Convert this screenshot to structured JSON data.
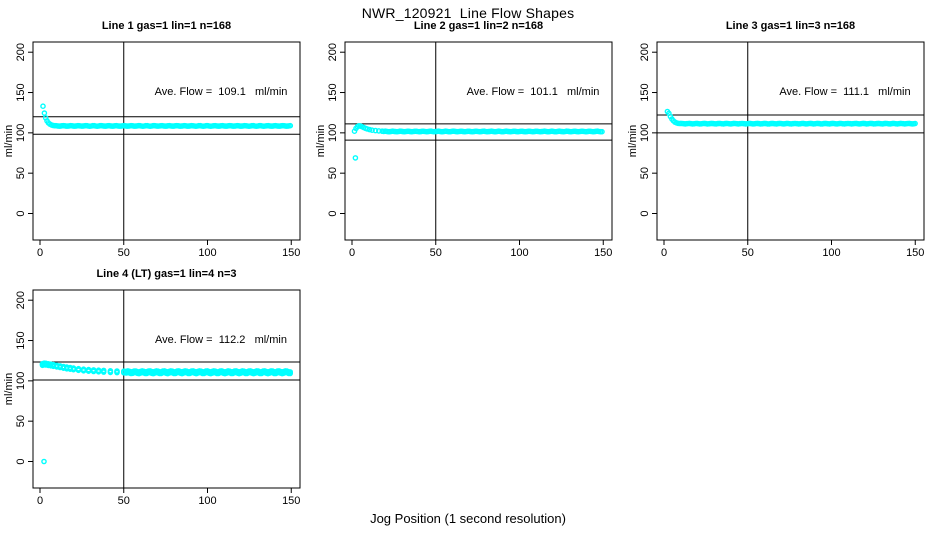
{
  "page": {
    "title": "NWR_120921  Line Flow Shapes",
    "xlabel": "Jog Position (1 second resolution)"
  },
  "colors": {
    "marker": "#00ffff",
    "axis": "#000000",
    "background": "#ffffff"
  },
  "chart_data": [
    {
      "type": "scatter",
      "title": "Line 1 gas=1 lin=1 n=168",
      "annotation": "Ave. Flow =  109.1   ml/min",
      "ave_flow": 109.1,
      "n": 168,
      "ylabel": "ml/min",
      "xlim": [
        0,
        150
      ],
      "ylim": [
        0,
        200
      ],
      "xticks": [
        0,
        50,
        100,
        150
      ],
      "yticks": [
        0,
        50,
        100,
        150,
        200
      ],
      "ref_lines": {
        "vertical_x": 50,
        "horizontal": [
          98.2,
          120.0
        ]
      },
      "points": {
        "outliers": [],
        "transient": [
          [
            1.8,
            133
          ],
          [
            2.6,
            124.5
          ],
          [
            3.4,
            118.5
          ],
          [
            4.2,
            114.8
          ],
          [
            5.0,
            112.3
          ],
          [
            5.9,
            110.8
          ],
          [
            6.8,
            109.8
          ],
          [
            7.7,
            109.2
          ],
          [
            8.6,
            108.9
          ]
        ],
        "steady": {
          "from": 9.5,
          "to": 150,
          "step": 0.88,
          "value": 108.6,
          "noise": 0.3
        },
        "band": 0
      }
    },
    {
      "type": "scatter",
      "title": "Line 2 gas=1 lin=2 n=168",
      "annotation": "Ave. Flow =  101.1   ml/min",
      "ave_flow": 101.1,
      "n": 168,
      "ylabel": "ml/min",
      "xlim": [
        0,
        150
      ],
      "ylim": [
        0,
        200
      ],
      "xticks": [
        0,
        50,
        100,
        150
      ],
      "yticks": [
        0,
        50,
        100,
        150,
        200
      ],
      "ref_lines": {
        "vertical_x": 50,
        "horizontal": [
          91.0,
          111.2
        ]
      },
      "points": {
        "outliers": [
          [
            2,
            69
          ]
        ],
        "transient": [
          [
            1.5,
            102
          ],
          [
            2.4,
            105.5
          ],
          [
            3.3,
            107.8
          ],
          [
            4.2,
            108.8
          ],
          [
            5.1,
            108.4
          ],
          [
            6.0,
            107.6
          ],
          [
            7.0,
            106.6
          ],
          [
            8.0,
            105.7
          ],
          [
            9.0,
            104.9
          ],
          [
            10.5,
            104.0
          ],
          [
            12,
            103.3
          ],
          [
            14,
            102.8
          ],
          [
            16,
            102.4
          ],
          [
            18,
            102.1
          ]
        ],
        "steady": {
          "from": 19,
          "to": 150,
          "step": 0.88,
          "value": 101.7,
          "noise": 0.3
        },
        "band": 0
      }
    },
    {
      "type": "scatter",
      "title": "Line 3 gas=1 lin=3 n=168",
      "annotation": "Ave. Flow =  111.1   ml/min",
      "ave_flow": 111.1,
      "n": 168,
      "ylabel": "ml/min",
      "xlim": [
        0,
        150
      ],
      "ylim": [
        0,
        200
      ],
      "xticks": [
        0,
        50,
        100,
        150
      ],
      "yticks": [
        0,
        50,
        100,
        150,
        200
      ],
      "ref_lines": {
        "vertical_x": 50,
        "horizontal": [
          100.0,
          122.2
        ]
      },
      "points": {
        "outliers": [],
        "transient": [
          [
            2.0,
            126.5
          ],
          [
            2.9,
            124.3
          ],
          [
            3.8,
            120.3
          ],
          [
            4.7,
            117.2
          ],
          [
            5.6,
            114.9
          ],
          [
            6.5,
            113.3
          ],
          [
            7.4,
            112.4
          ],
          [
            8.3,
            111.9
          ],
          [
            9.2,
            111.6
          ]
        ],
        "steady": {
          "from": 10,
          "to": 150,
          "step": 0.88,
          "value": 111.4,
          "noise": 0.3
        },
        "band": 0
      }
    },
    {
      "type": "scatter",
      "title": "Line 4 (LT) gas=1 lin=4 n=3",
      "annotation": "Ave. Flow =  112.2   ml/min",
      "ave_flow": 112.2,
      "n": 3,
      "ylabel": "ml/min",
      "xlim": [
        0,
        150
      ],
      "ylim": [
        0,
        200
      ],
      "xticks": [
        0,
        50,
        100,
        150
      ],
      "yticks": [
        0,
        50,
        100,
        150,
        200
      ],
      "ref_lines": {
        "vertical_x": 50,
        "horizontal": [
          101.0,
          123.4
        ]
      },
      "points": {
        "outliers": [
          [
            2.4,
            0
          ]
        ],
        "transient": [
          [
            1.5,
            120.3
          ],
          [
            2.5,
            120.9
          ],
          [
            3.5,
            120.7
          ],
          [
            5,
            120.2
          ],
          [
            6.5,
            119.7
          ],
          [
            8,
            119.1
          ],
          [
            10,
            118.3
          ],
          [
            12,
            117.5
          ],
          [
            14,
            116.7
          ],
          [
            16,
            116.0
          ],
          [
            18,
            115.4
          ],
          [
            20,
            114.8
          ],
          [
            23,
            114.1
          ],
          [
            26,
            113.5
          ],
          [
            29,
            113.0
          ],
          [
            32,
            112.6
          ],
          [
            35,
            112.2
          ],
          [
            38,
            111.9
          ],
          [
            42,
            111.5
          ],
          [
            46,
            111.2
          ],
          [
            50,
            111.0
          ]
        ],
        "steady": {
          "from": 51.5,
          "to": 150,
          "step": 0.95,
          "value": 110.7,
          "noise": 0.7
        },
        "band": 2.0
      }
    }
  ]
}
